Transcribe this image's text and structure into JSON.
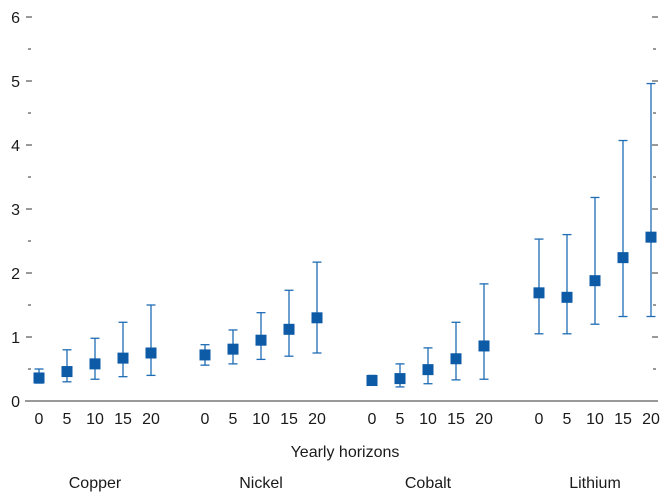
{
  "chart_data": {
    "type": "scatter",
    "title": "",
    "xlabel": "Yearly horizons",
    "ylabel": "",
    "ylim": [
      0,
      6
    ],
    "yticks": [
      "0",
      "1",
      "2",
      "3",
      "4",
      "5",
      "6"
    ],
    "horizons": [
      "0",
      "5",
      "10",
      "15",
      "20"
    ],
    "grid": false,
    "legend": "none",
    "marker_color": "#0d5aa7",
    "errorbar_color": "#1f6db5",
    "groups": [
      {
        "name": "Copper",
        "points": [
          {
            "horizon": "0",
            "value": 0.36,
            "low": 0.28,
            "high": 0.5
          },
          {
            "horizon": "5",
            "value": 0.46,
            "low": 0.3,
            "high": 0.8
          },
          {
            "horizon": "10",
            "value": 0.58,
            "low": 0.34,
            "high": 0.98
          },
          {
            "horizon": "15",
            "value": 0.67,
            "low": 0.38,
            "high": 1.23
          },
          {
            "horizon": "20",
            "value": 0.75,
            "low": 0.4,
            "high": 1.5
          }
        ]
      },
      {
        "name": "Nickel",
        "points": [
          {
            "horizon": "0",
            "value": 0.72,
            "low": 0.56,
            "high": 0.88
          },
          {
            "horizon": "5",
            "value": 0.81,
            "low": 0.58,
            "high": 1.11
          },
          {
            "horizon": "10",
            "value": 0.95,
            "low": 0.65,
            "high": 1.38
          },
          {
            "horizon": "15",
            "value": 1.12,
            "low": 0.7,
            "high": 1.73
          },
          {
            "horizon": "20",
            "value": 1.3,
            "low": 0.75,
            "high": 2.17
          }
        ]
      },
      {
        "name": "Cobalt",
        "points": [
          {
            "horizon": "0",
            "value": 0.32,
            "low": 0.27,
            "high": 0.4
          },
          {
            "horizon": "5",
            "value": 0.35,
            "low": 0.22,
            "high": 0.58
          },
          {
            "horizon": "10",
            "value": 0.49,
            "low": 0.27,
            "high": 0.83
          },
          {
            "horizon": "15",
            "value": 0.66,
            "low": 0.33,
            "high": 1.23
          },
          {
            "horizon": "20",
            "value": 0.86,
            "low": 0.34,
            "high": 1.83
          }
        ]
      },
      {
        "name": "Lithium",
        "points": [
          {
            "horizon": "0",
            "value": 1.69,
            "low": 1.05,
            "high": 2.53
          },
          {
            "horizon": "5",
            "value": 1.62,
            "low": 1.05,
            "high": 2.6
          },
          {
            "horizon": "10",
            "value": 1.88,
            "low": 1.2,
            "high": 3.18
          },
          {
            "horizon": "15",
            "value": 2.24,
            "low": 1.32,
            "high": 4.07
          },
          {
            "horizon": "20",
            "value": 2.56,
            "low": 1.32,
            "high": 4.96
          }
        ]
      }
    ]
  }
}
